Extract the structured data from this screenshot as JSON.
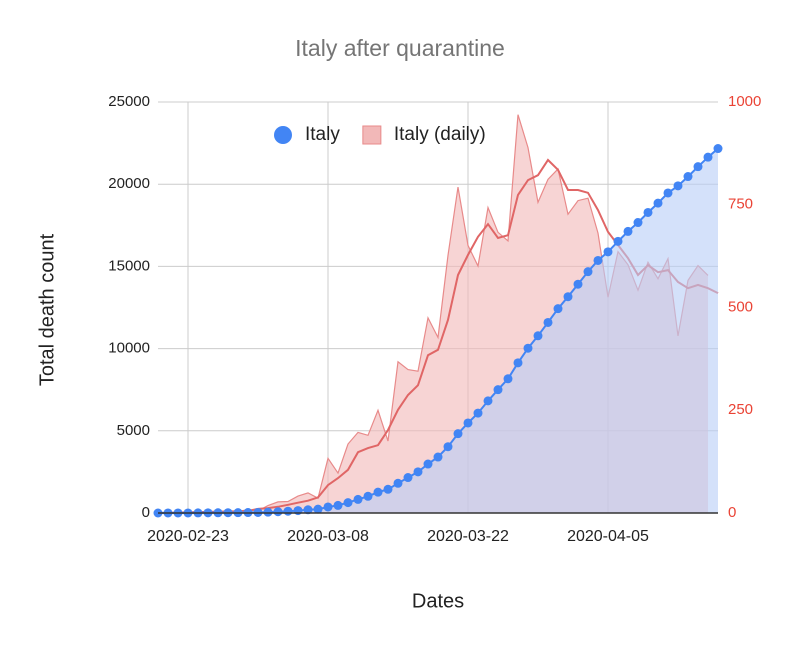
{
  "chart_data": {
    "type": "line",
    "title": "Italy after quarantine",
    "x_label": "Dates",
    "y_label": "Total death count",
    "x": [
      "2020-02-20",
      "2020-02-21",
      "2020-02-22",
      "2020-02-23",
      "2020-02-24",
      "2020-02-25",
      "2020-02-26",
      "2020-02-27",
      "2020-02-28",
      "2020-02-29",
      "2020-03-01",
      "2020-03-02",
      "2020-03-03",
      "2020-03-04",
      "2020-03-05",
      "2020-03-06",
      "2020-03-07",
      "2020-03-08",
      "2020-03-09",
      "2020-03-10",
      "2020-03-11",
      "2020-03-12",
      "2020-03-13",
      "2020-03-14",
      "2020-03-15",
      "2020-03-16",
      "2020-03-17",
      "2020-03-18",
      "2020-03-19",
      "2020-03-20",
      "2020-03-21",
      "2020-03-22",
      "2020-03-23",
      "2020-03-24",
      "2020-03-25",
      "2020-03-26",
      "2020-03-27",
      "2020-03-28",
      "2020-03-29",
      "2020-03-30",
      "2020-03-31",
      "2020-04-01",
      "2020-04-02",
      "2020-04-03",
      "2020-04-04",
      "2020-04-05",
      "2020-04-06",
      "2020-04-07",
      "2020-04-08",
      "2020-04-09",
      "2020-04-10",
      "2020-04-11",
      "2020-04-12",
      "2020-04-13",
      "2020-04-14",
      "2020-04-15",
      "2020-04-16"
    ],
    "xlim": [
      "2020-02-20",
      "2020-04-16"
    ],
    "xticks": [
      "2020-02-23",
      "2020-03-08",
      "2020-03-22",
      "2020-04-05"
    ],
    "ylim": [
      0,
      25000
    ],
    "yticks": [
      0,
      5000,
      10000,
      15000,
      20000,
      25000
    ],
    "y2lim": [
      0,
      1000
    ],
    "y2ticks": [
      0,
      250,
      500,
      750,
      1000
    ],
    "grid": true,
    "legend": "top",
    "series": [
      {
        "name": "Italy",
        "color": "#4285f4",
        "area_color": "#b7cdf6",
        "values": [
          0,
          1,
          2,
          3,
          7,
          10,
          12,
          17,
          21,
          29,
          34,
          52,
          79,
          107,
          148,
          197,
          233,
          366,
          463,
          631,
          827,
          1016,
          1266,
          1441,
          1809,
          2158,
          2503,
          2978,
          3405,
          4032,
          4825,
          5476,
          6077,
          6820,
          7503,
          8165,
          9134,
          10023,
          10779,
          11591,
          12428,
          13155,
          13915,
          14681,
          15362,
          15887,
          16523,
          17127,
          17669,
          18279,
          18849,
          19468,
          19899,
          20465,
          21067,
          21645,
          22170
        ]
      },
      {
        "name": "Italy (daily)",
        "axis": "y2",
        "color": "#e88a8a",
        "area_color": "#f2b8b8",
        "average_color": "#e06666",
        "values": [
          0,
          1,
          1,
          1,
          4,
          3,
          2,
          5,
          4,
          8,
          5,
          18,
          27,
          28,
          41,
          49,
          36,
          133,
          97,
          168,
          196,
          189,
          250,
          175,
          368,
          349,
          345,
          475,
          427,
          627,
          793,
          651,
          601,
          743,
          683,
          662,
          969,
          889,
          756,
          812,
          837,
          727,
          760,
          766,
          681,
          525,
          636,
          604,
          542,
          610,
          570,
          619,
          431,
          566,
          602,
          578,
          null
        ],
        "average": [
          0,
          1,
          1,
          2,
          2,
          3,
          3,
          4,
          4,
          5,
          10,
          12,
          15,
          20,
          25,
          30,
          38,
          68,
          85,
          105,
          148,
          158,
          165,
          202,
          251,
          287,
          311,
          384,
          397,
          470,
          579,
          628,
          672,
          703,
          669,
          676,
          774,
          810,
          822,
          859,
          835,
          786,
          786,
          779,
          737,
          684,
          652,
          620,
          579,
          603,
          586,
          591,
          562,
          547,
          555,
          547,
          535
        ]
      }
    ]
  }
}
